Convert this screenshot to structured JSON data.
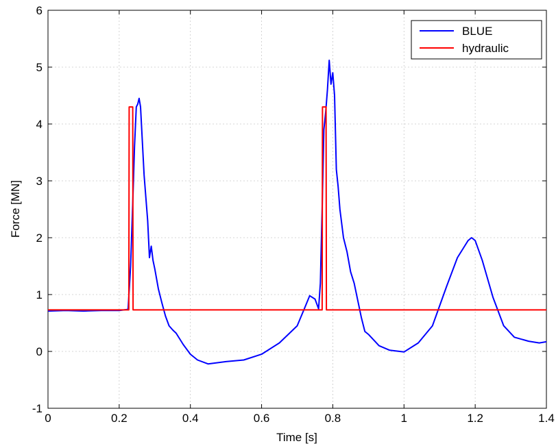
{
  "chart_data": {
    "type": "line",
    "title": "",
    "xlabel": "Time [s]",
    "ylabel": "Force [MN]",
    "xlim": [
      0,
      1.4
    ],
    "ylim": [
      -1,
      6
    ],
    "xticks": [
      0,
      0.2,
      0.4,
      0.6,
      0.8,
      1,
      1.2,
      1.4
    ],
    "xtick_labels": [
      "0",
      "0.2",
      "0.4",
      "0.6",
      "0.8",
      "1",
      "1.2",
      "1.4"
    ],
    "yticks": [
      -1,
      0,
      1,
      2,
      3,
      4,
      5,
      6
    ],
    "ytick_labels": [
      "-1",
      "0",
      "1",
      "2",
      "3",
      "4",
      "5",
      "6"
    ],
    "grid": true,
    "legend_position": "top-right",
    "series": [
      {
        "name": "BLUE",
        "color": "#0000ff",
        "x": [
          0,
          0.05,
          0.1,
          0.15,
          0.2,
          0.225,
          0.232,
          0.238,
          0.243,
          0.248,
          0.252,
          0.256,
          0.26,
          0.265,
          0.27,
          0.275,
          0.28,
          0.285,
          0.29,
          0.295,
          0.3,
          0.31,
          0.32,
          0.33,
          0.34,
          0.35,
          0.36,
          0.38,
          0.4,
          0.42,
          0.45,
          0.5,
          0.55,
          0.6,
          0.65,
          0.7,
          0.72,
          0.735,
          0.75,
          0.76,
          0.765,
          0.77,
          0.775,
          0.78,
          0.785,
          0.79,
          0.795,
          0.8,
          0.805,
          0.81,
          0.815,
          0.82,
          0.83,
          0.84,
          0.85,
          0.86,
          0.87,
          0.88,
          0.89,
          0.9,
          0.93,
          0.96,
          1.0,
          1.04,
          1.08,
          1.1,
          1.12,
          1.15,
          1.18,
          1.19,
          1.2,
          1.22,
          1.25,
          1.28,
          1.31,
          1.35,
          1.38,
          1.4
        ],
        "values": [
          0.71,
          0.72,
          0.71,
          0.72,
          0.72,
          0.74,
          1.5,
          2.6,
          3.6,
          4.3,
          4.35,
          4.45,
          4.3,
          3.7,
          3.1,
          2.7,
          2.3,
          1.65,
          1.85,
          1.6,
          1.45,
          1.1,
          0.85,
          0.62,
          0.45,
          0.38,
          0.32,
          0.12,
          -0.05,
          -0.15,
          -0.22,
          -0.18,
          -0.15,
          -0.05,
          0.15,
          0.45,
          0.75,
          0.98,
          0.92,
          0.75,
          1.2,
          2.5,
          3.9,
          4.2,
          4.6,
          5.12,
          4.7,
          4.9,
          4.5,
          3.2,
          2.9,
          2.5,
          2.0,
          1.75,
          1.4,
          1.2,
          0.9,
          0.6,
          0.35,
          0.3,
          0.1,
          0.02,
          -0.01,
          0.15,
          0.45,
          0.8,
          1.15,
          1.65,
          1.95,
          2.0,
          1.95,
          1.6,
          0.95,
          0.45,
          0.25,
          0.18,
          0.15,
          0.17
        ]
      },
      {
        "name": "hydraulic",
        "color": "#ff0000",
        "x": [
          0,
          0.227,
          0.228,
          0.238,
          0.239,
          0.77,
          0.771,
          0.781,
          0.782,
          1.4
        ],
        "values": [
          0.73,
          0.73,
          4.3,
          4.3,
          0.73,
          0.73,
          4.3,
          4.3,
          0.73,
          0.73
        ]
      }
    ]
  }
}
